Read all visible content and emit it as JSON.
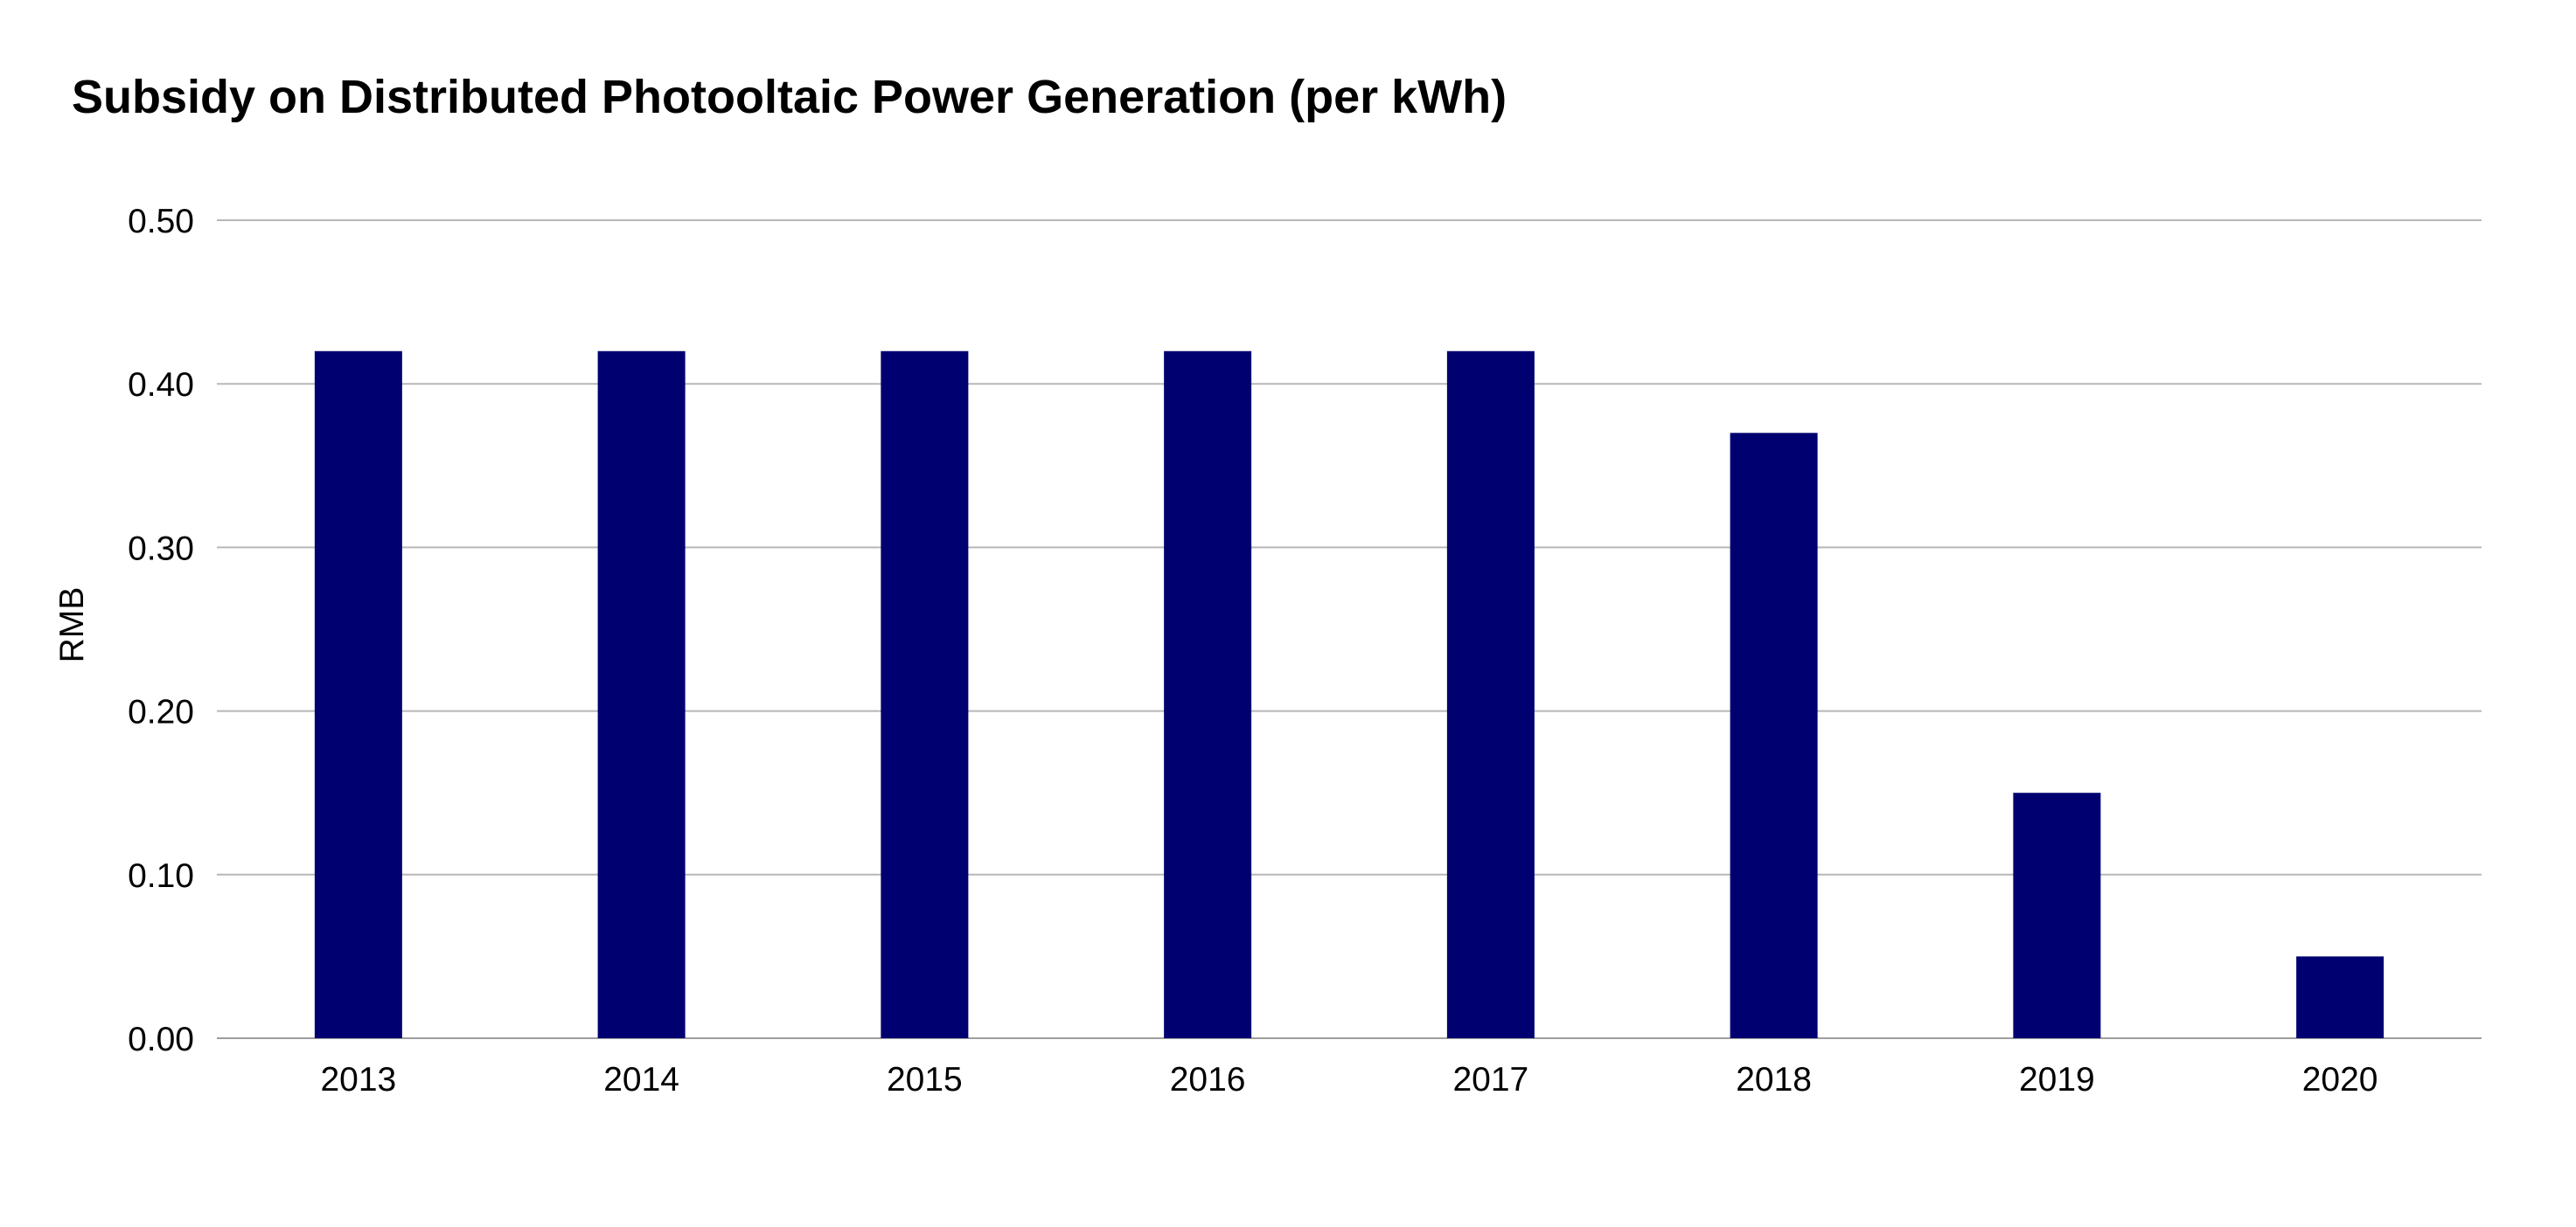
{
  "chart_data": {
    "type": "bar",
    "title": "Subsidy on Distributed Photooltaic Power Generation (per kWh)",
    "xlabel": "",
    "ylabel": "RMB",
    "categories": [
      "2013",
      "2014",
      "2015",
      "2016",
      "2017",
      "2018",
      "2019",
      "2020"
    ],
    "values": [
      0.42,
      0.42,
      0.42,
      0.42,
      0.42,
      0.37,
      0.15,
      0.05
    ],
    "ylim": [
      0,
      0.5
    ],
    "yticks": [
      "0.00",
      "0.10",
      "0.20",
      "0.30",
      "0.40",
      "0.50"
    ],
    "grid": true,
    "legend": "none",
    "colors": {
      "bar": "#000070",
      "grid": "#b7b7b7",
      "axis": "#9e9e9e"
    }
  }
}
